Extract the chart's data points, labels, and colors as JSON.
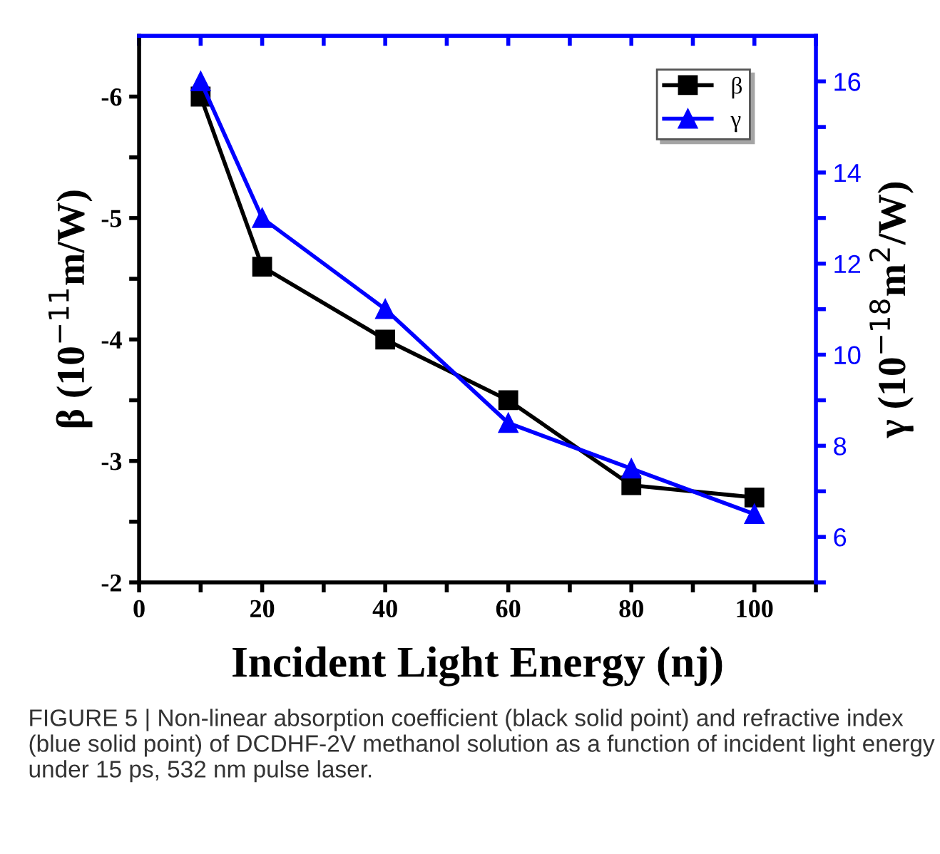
{
  "chart_data": {
    "type": "line",
    "xlabel": "Incident Light Energy (nj)",
    "ylabel": "β (10$^{−11}$m/W)",
    "y2label": "γ (10$^{−18}$m$^{2}$/W)",
    "x": [
      10,
      20,
      40,
      60,
      80,
      100
    ],
    "series": [
      {
        "name": "β",
        "color": "#000000",
        "marker": "square",
        "values": [
          -6,
          -4.6,
          -4.0,
          -3.5,
          -2.8,
          -2.7
        ]
      },
      {
        "name": "γ",
        "color": "#0000ff",
        "marker": "triangle",
        "axis": "y2",
        "values": [
          16,
          13,
          11,
          8.5,
          7.5,
          6.5
        ]
      }
    ],
    "xlim": [
      0,
      110
    ],
    "xticks": [
      0,
      {
        "value": 10,
        "label": null
      },
      20,
      {
        "value": 30,
        "label": null
      },
      40,
      {
        "value": 50,
        "label": null
      },
      60,
      {
        "value": 70,
        "label": null
      },
      80,
      {
        "value": 90,
        "label": null
      },
      100,
      {
        "value": 110,
        "label": null
      }
    ],
    "ylim": [
      -2,
      -6.5
    ],
    "yticks": [
      -2,
      {
        "value": -2.5,
        "label": null
      },
      -3,
      {
        "value": -3.5,
        "label": null
      },
      -4,
      {
        "value": -4.5,
        "label": null
      },
      -5,
      {
        "value": -5.5,
        "label": null
      },
      -6
    ],
    "y2lim": [
      5,
      17
    ],
    "y2ticks": [
      {
        "value": 5,
        "label": null
      },
      6,
      {
        "value": 7,
        "label": null
      },
      8,
      {
        "value": 9,
        "label": null
      },
      10,
      {
        "value": 11,
        "label": null
      },
      12,
      {
        "value": 13,
        "label": null
      },
      14,
      {
        "value": 15,
        "label": null
      },
      16
    ],
    "grid": false,
    "legend": "top right",
    "line_style": "solid",
    "annotations": [
      "FIGURE 5 | Non-linear absorption coefficient (black solid point) and refractive index (blue solid point) of DCDHF-2V methanol solution as a function of incident light energy under 15 ps, 532 nm pulse laser."
    ]
  }
}
